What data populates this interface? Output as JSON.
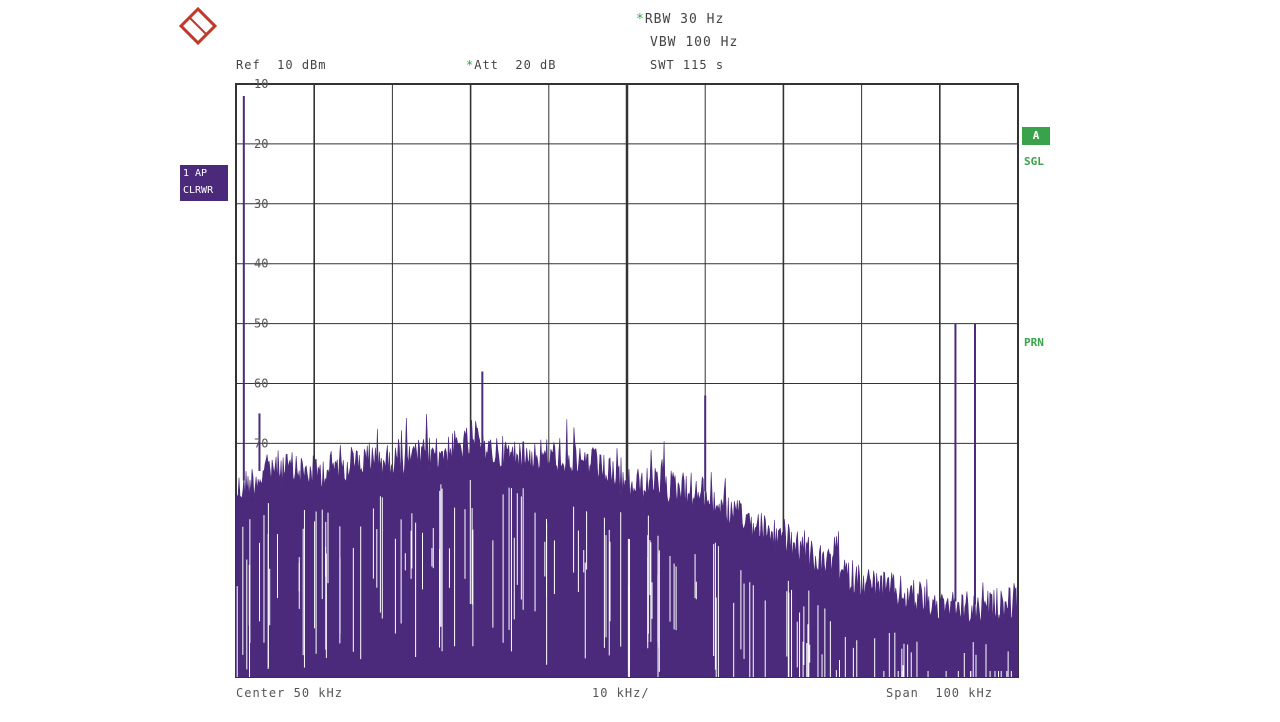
{
  "header": {
    "rbw_label": "RBW",
    "rbw_value": "30 Hz",
    "vbw_label": "VBW",
    "vbw_value": "100 Hz",
    "ref_label": "Ref",
    "ref_value": "10 dBm",
    "att_label": "Att",
    "att_value": "20 dB",
    "swt_label": "SWT",
    "swt_value": "115 s"
  },
  "side": {
    "trace_line1": "1 AP",
    "trace_line2": "CLRWR",
    "badge": "A",
    "sgl": "SGL",
    "prn": "PRN"
  },
  "footer": {
    "center_label": "Center",
    "center_value": "50 kHz",
    "div_value": "10 kHz/",
    "span_label": "Span",
    "span_value": "100 kHz"
  },
  "colors": {
    "trace": "#4b2a7b",
    "accent": "#3aa24a",
    "grid": "#333333",
    "logo": "#c0392b"
  },
  "chart_data": {
    "type": "line",
    "xlim": [
      0,
      100
    ],
    "ylim": [
      10,
      109
    ],
    "y_ticks": [
      10,
      20,
      30,
      40,
      50,
      60,
      70
    ],
    "y_tick_labels": [
      "10",
      "20",
      "30",
      "40",
      "50",
      "60",
      "70"
    ],
    "grid": true,
    "x_unit": "kHz",
    "noise_envelope": [
      {
        "x": 0,
        "y": 77
      },
      {
        "x": 5,
        "y": 73
      },
      {
        "x": 10,
        "y": 74
      },
      {
        "x": 15,
        "y": 72
      },
      {
        "x": 20,
        "y": 72
      },
      {
        "x": 25,
        "y": 71
      },
      {
        "x": 30,
        "y": 69
      },
      {
        "x": 35,
        "y": 71
      },
      {
        "x": 40,
        "y": 71
      },
      {
        "x": 45,
        "y": 72
      },
      {
        "x": 50,
        "y": 76
      },
      {
        "x": 55,
        "y": 76
      },
      {
        "x": 60,
        "y": 78
      },
      {
        "x": 65,
        "y": 82
      },
      {
        "x": 70,
        "y": 85
      },
      {
        "x": 75,
        "y": 89
      },
      {
        "x": 80,
        "y": 92
      },
      {
        "x": 85,
        "y": 94
      },
      {
        "x": 90,
        "y": 96
      },
      {
        "x": 95,
        "y": 97
      },
      {
        "x": 100,
        "y": 95
      }
    ],
    "spurs": [
      {
        "x": 1.0,
        "y": 12
      },
      {
        "x": 3.0,
        "y": 65
      },
      {
        "x": 31.5,
        "y": 58
      },
      {
        "x": 60.0,
        "y": 62
      },
      {
        "x": 92.0,
        "y": 50
      },
      {
        "x": 94.5,
        "y": 50
      }
    ]
  }
}
